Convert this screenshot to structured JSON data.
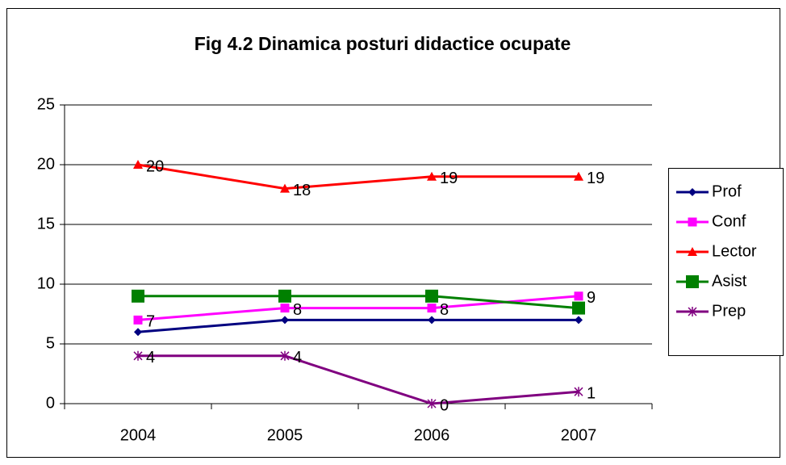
{
  "chart_data": {
    "type": "line",
    "title": "Fig 4.2 Dinamica posturi didactice ocupate",
    "categories": [
      "2004",
      "2005",
      "2006",
      "2007"
    ],
    "series": [
      {
        "name": "Prof",
        "color": "#000080",
        "marker": "diamond",
        "values": [
          6,
          7,
          7,
          7
        ],
        "show_labels": false
      },
      {
        "name": "Conf",
        "color": "#FF00FF",
        "marker": "square",
        "values": [
          7,
          8,
          8,
          9
        ],
        "show_labels": true
      },
      {
        "name": "Lector",
        "color": "#FF0000",
        "marker": "triangle",
        "values": [
          20,
          18,
          19,
          19
        ],
        "show_labels": true
      },
      {
        "name": "Asist",
        "color": "#008000",
        "marker": "bigsquare",
        "values": [
          9,
          9,
          9,
          8
        ],
        "show_labels": false
      },
      {
        "name": "Prep",
        "color": "#800080",
        "marker": "star",
        "values": [
          4,
          4,
          0,
          1
        ],
        "show_labels": true
      }
    ],
    "ylim": [
      0,
      25
    ],
    "yticks": [
      0,
      5,
      10,
      15,
      20,
      25
    ],
    "grid": true,
    "legend": "right"
  }
}
